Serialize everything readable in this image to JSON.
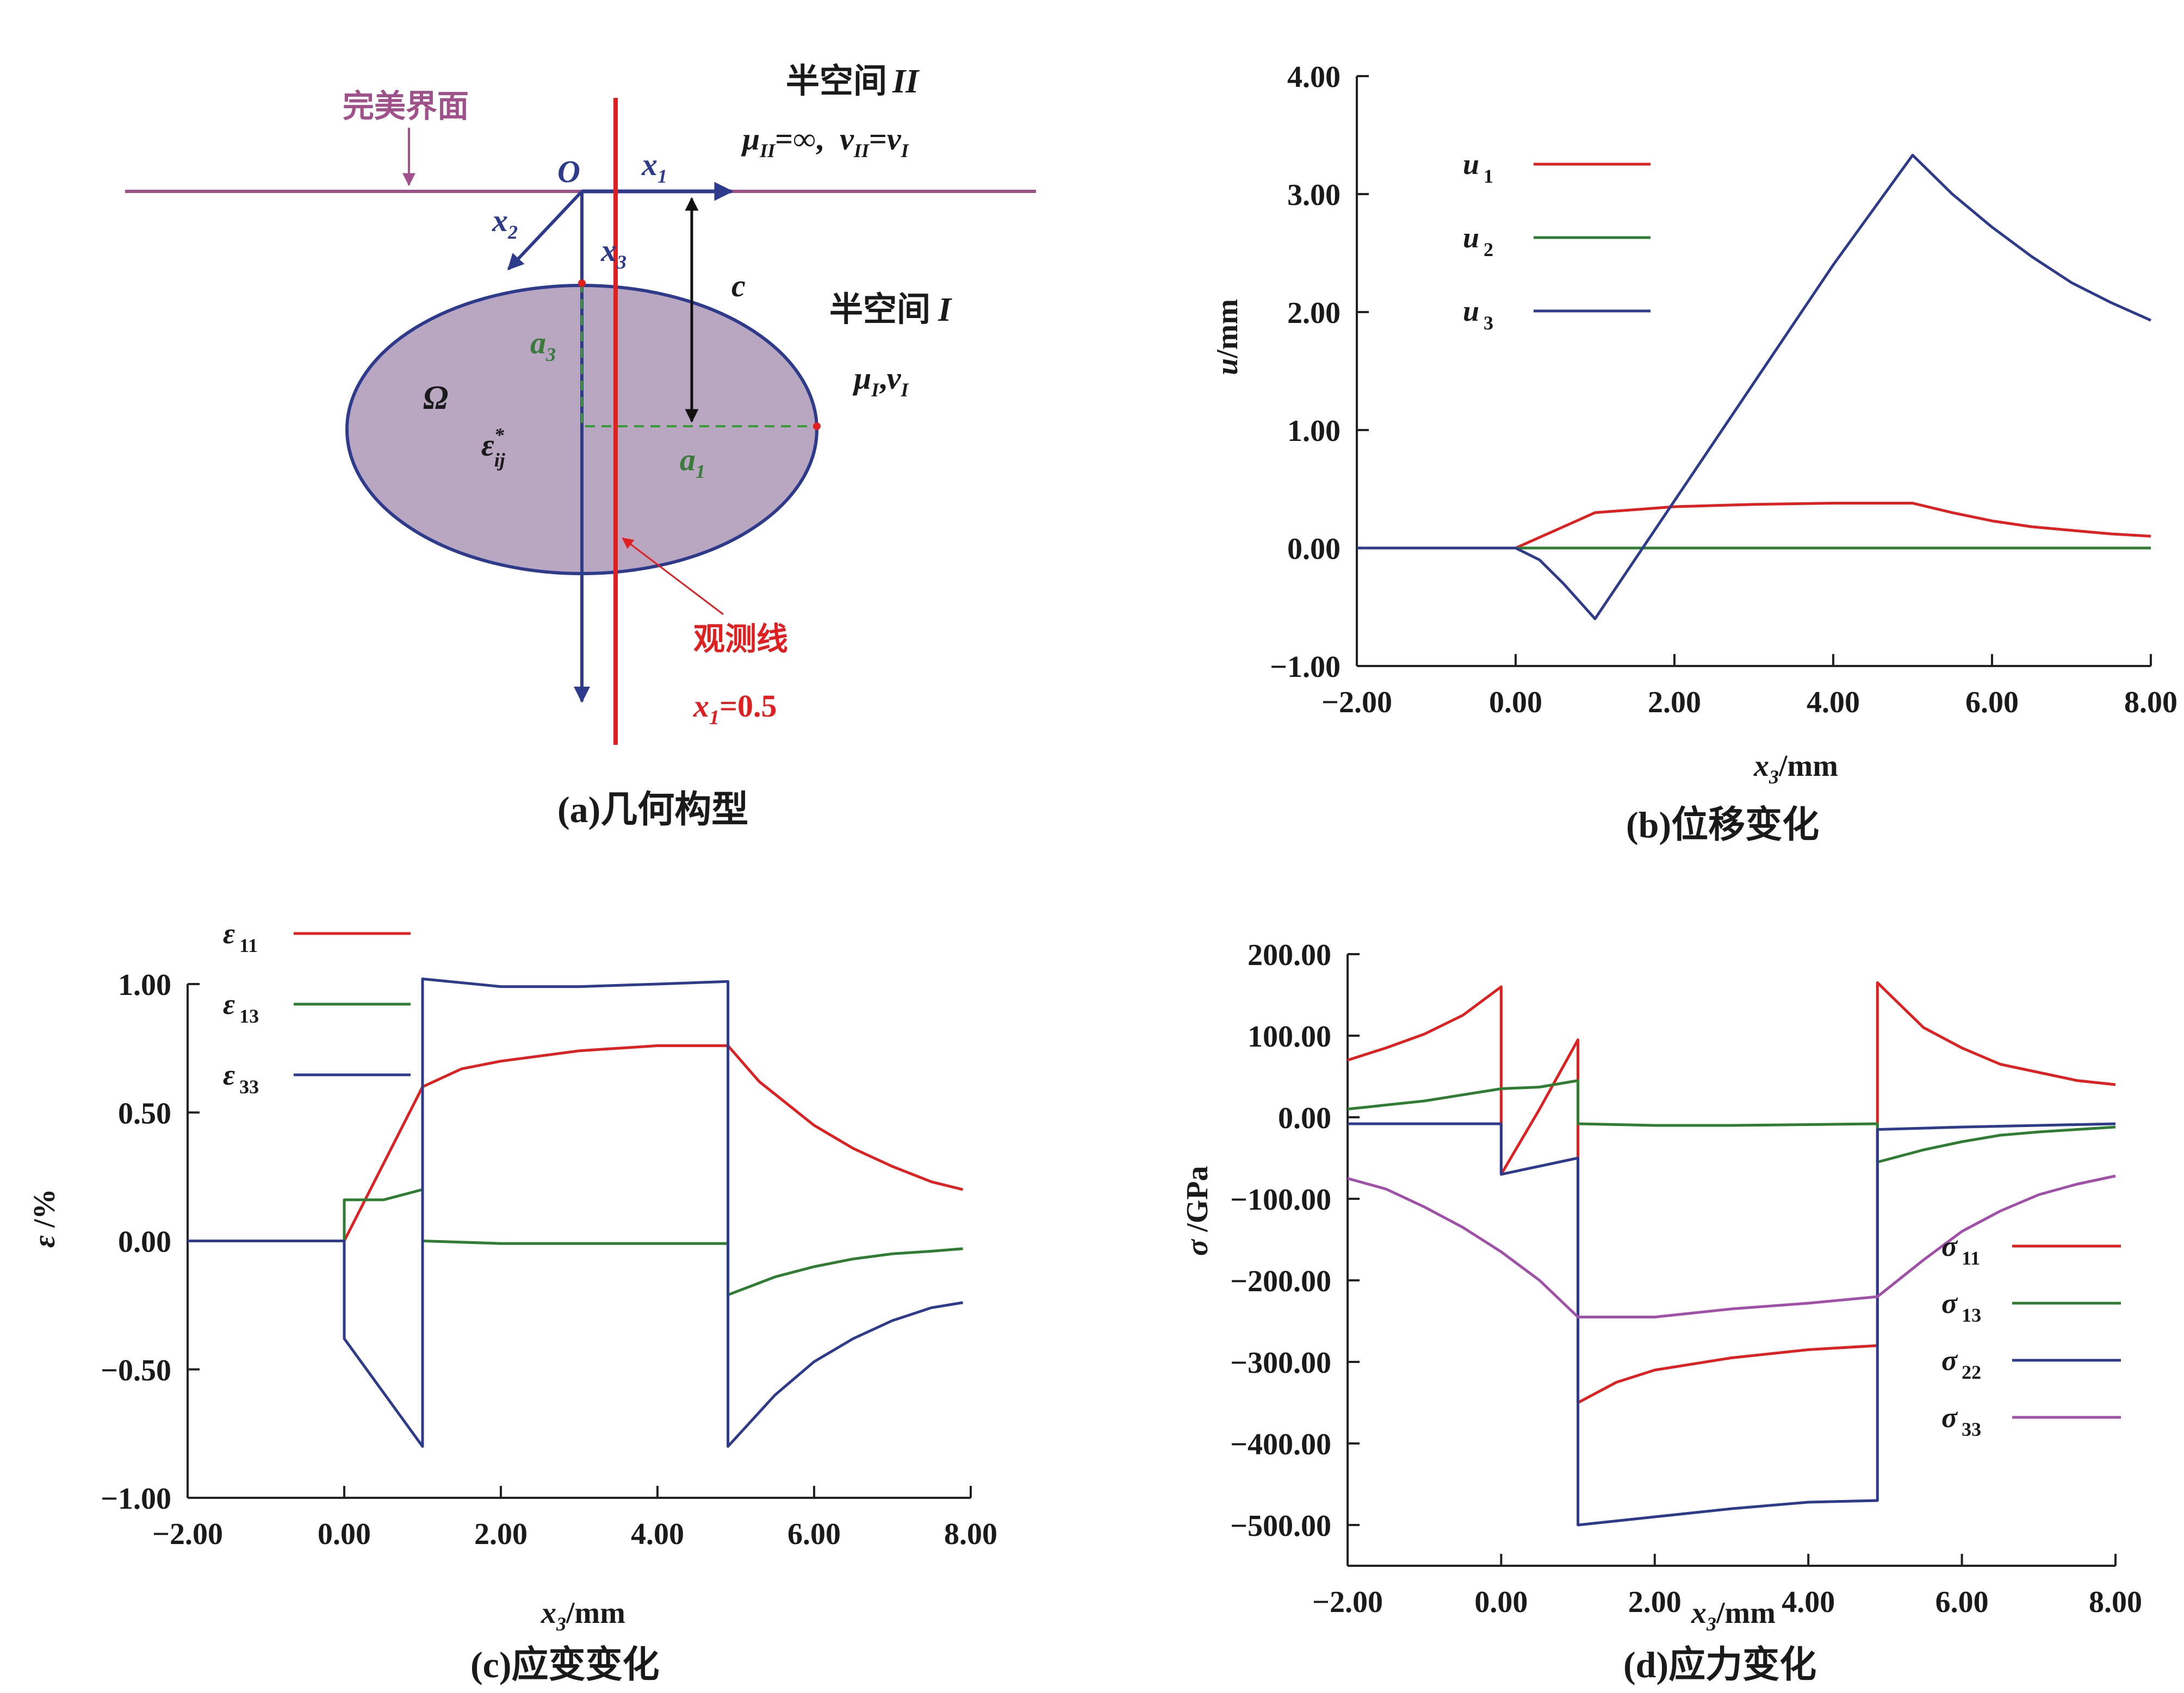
{
  "chart_data": [
    {
      "panel": "a",
      "type": "diagram",
      "caption": "(a)几何构型",
      "labels": {
        "perfect_interface": "完美界面",
        "half_space_2_title": "半空间",
        "half_space_2_numeral": "II",
        "half_space_2_props": "μII=∞, vII=vI",
        "half_space_1_title": "半空间",
        "half_space_1_numeral": "I",
        "half_space_1_props": "μI,vI",
        "origin": "O",
        "x1": "x1",
        "x2": "x2",
        "x3": "x3",
        "c": "c",
        "a1": "a1",
        "a3": "a3",
        "omega": "Ω",
        "eigenstrain": "ε*ij",
        "observation_line": "观测线",
        "observation_position": "x1=0.5"
      },
      "colors": {
        "interface": "#a0508a",
        "ellipse_fill": "#b9a6c1",
        "ellipse_stroke": "#2e3a8c",
        "observation": "#e02020",
        "dims": "#3a7a3a",
        "axis": "#2e3a8c"
      }
    },
    {
      "panel": "b",
      "type": "line",
      "caption": "(b)位移变化",
      "xlabel": "x3/mm",
      "ylabel": "u/mm",
      "xlim": [
        -2,
        8
      ],
      "ylim": [
        -1,
        4
      ],
      "xticks": [
        "−2.00",
        "0.00",
        "2.00",
        "4.00",
        "6.00",
        "8.00"
      ],
      "yticks": [
        "−1.00",
        "0.00",
        "1.00",
        "2.00",
        "3.00",
        "4.00"
      ],
      "legend_position": "top-left",
      "series": [
        {
          "name": "u1",
          "color": "#e02020",
          "points": [
            [
              -2,
              0
            ],
            [
              0,
              0
            ],
            [
              0.5,
              0.15
            ],
            [
              1,
              0.3
            ],
            [
              2,
              0.35
            ],
            [
              3,
              0.37
            ],
            [
              4,
              0.38
            ],
            [
              5,
              0.38
            ],
            [
              5.5,
              0.3
            ],
            [
              6,
              0.23
            ],
            [
              6.5,
              0.18
            ],
            [
              7,
              0.15
            ],
            [
              7.5,
              0.12
            ],
            [
              8,
              0.1
            ]
          ]
        },
        {
          "name": "u2",
          "color": "#2e7d32",
          "points": [
            [
              -2,
              0
            ],
            [
              8,
              0
            ]
          ]
        },
        {
          "name": "u3",
          "color": "#2e3a8c",
          "points": [
            [
              -2,
              0
            ],
            [
              0,
              0
            ],
            [
              0.3,
              -0.1
            ],
            [
              0.6,
              -0.3
            ],
            [
              1,
              -0.6
            ],
            [
              2,
              0.4
            ],
            [
              3,
              1.4
            ],
            [
              4,
              2.4
            ],
            [
              5,
              3.33
            ],
            [
              5.5,
              3.0
            ],
            [
              6,
              2.72
            ],
            [
              6.5,
              2.47
            ],
            [
              7,
              2.25
            ],
            [
              7.5,
              2.08
            ],
            [
              8,
              1.93
            ]
          ]
        }
      ]
    },
    {
      "panel": "c",
      "type": "line",
      "caption": "(c)应变变化",
      "xlabel": "x3/mm",
      "ylabel": "ε/%",
      "xlim": [
        -2,
        8
      ],
      "ylim": [
        -1,
        1
      ],
      "xticks": [
        "−2.00",
        "0.00",
        "2.00",
        "4.00",
        "6.00",
        "8.00"
      ],
      "yticks": [
        "−1.00",
        "−0.50",
        "0.00",
        "0.50",
        "1.00"
      ],
      "legend_position": "top-left",
      "series": [
        {
          "name": "ε11",
          "color": "#e02020",
          "points": [
            [
              -2,
              0
            ],
            [
              0,
              0
            ],
            [
              1,
              0.6
            ],
            [
              1.5,
              0.67
            ],
            [
              2,
              0.7
            ],
            [
              3,
              0.74
            ],
            [
              4,
              0.76
            ],
            [
              4.9,
              0.76
            ],
            [
              5.3,
              0.62
            ],
            [
              6,
              0.45
            ],
            [
              6.5,
              0.36
            ],
            [
              7,
              0.29
            ],
            [
              7.5,
              0.23
            ],
            [
              7.9,
              0.2
            ]
          ]
        },
        {
          "name": "ε13",
          "color": "#2e7d32",
          "points": [
            [
              -2,
              0
            ],
            [
              0,
              0
            ],
            [
              0,
              0.16
            ],
            [
              0.5,
              0.16
            ],
            [
              1,
              0.2
            ],
            [
              1,
              0
            ],
            [
              2,
              -0.01
            ],
            [
              3,
              -0.01
            ],
            [
              4,
              -0.01
            ],
            [
              4.9,
              -0.01
            ],
            [
              4.9,
              -0.21
            ],
            [
              5.5,
              -0.14
            ],
            [
              6,
              -0.1
            ],
            [
              6.5,
              -0.07
            ],
            [
              7,
              -0.05
            ],
            [
              7.5,
              -0.04
            ],
            [
              7.9,
              -0.03
            ]
          ]
        },
        {
          "name": "ε33",
          "color": "#2e3a8c",
          "points": [
            [
              -2,
              0
            ],
            [
              0,
              0
            ],
            [
              0,
              -0.38
            ],
            [
              1,
              -0.8
            ],
            [
              1,
              1.02
            ],
            [
              2,
              0.99
            ],
            [
              3,
              0.99
            ],
            [
              4,
              1.0
            ],
            [
              4.9,
              1.01
            ],
            [
              4.9,
              -0.8
            ],
            [
              5.5,
              -0.6
            ],
            [
              6,
              -0.47
            ],
            [
              6.5,
              -0.38
            ],
            [
              7,
              -0.31
            ],
            [
              7.5,
              -0.26
            ],
            [
              7.9,
              -0.24
            ]
          ]
        }
      ]
    },
    {
      "panel": "d",
      "type": "line",
      "caption": "(d)应力变化",
      "xlabel": "x3/mm",
      "ylabel": "σ/GPa",
      "xlim": [
        -2,
        8
      ],
      "ylim": [
        -550,
        200
      ],
      "xticks": [
        "−2.00",
        "0.00",
        "2.00",
        "4.00",
        "6.00",
        "8.00"
      ],
      "yticks": [
        "−500.00",
        "−400.00",
        "−300.00",
        "−200.00",
        "−100.00",
        "0.00",
        "100.00",
        "200.00"
      ],
      "legend_position": "bottom-right",
      "series": [
        {
          "name": "σ11",
          "color": "#e02020",
          "points": [
            [
              -2,
              70
            ],
            [
              -1.5,
              85
            ],
            [
              -1,
              102
            ],
            [
              -0.5,
              125
            ],
            [
              0,
              160
            ],
            [
              0,
              -70
            ],
            [
              0.5,
              10
            ],
            [
              1,
              95
            ],
            [
              1,
              -350
            ],
            [
              1.5,
              -325
            ],
            [
              2,
              -310
            ],
            [
              3,
              -295
            ],
            [
              4,
              -285
            ],
            [
              4.9,
              -280
            ],
            [
              4.9,
              165
            ],
            [
              5.5,
              110
            ],
            [
              6,
              85
            ],
            [
              6.5,
              65
            ],
            [
              7,
              55
            ],
            [
              7.5,
              45
            ],
            [
              8,
              40
            ]
          ]
        },
        {
          "name": "σ13",
          "color": "#2e7d32",
          "points": [
            [
              -2,
              10
            ],
            [
              -1,
              20
            ],
            [
              0,
              35
            ],
            [
              0.5,
              37
            ],
            [
              1,
              45
            ],
            [
              1,
              -8
            ],
            [
              2,
              -10
            ],
            [
              3,
              -10
            ],
            [
              4,
              -9
            ],
            [
              4.9,
              -8
            ],
            [
              4.9,
              -55
            ],
            [
              5.5,
              -40
            ],
            [
              6,
              -30
            ],
            [
              6.5,
              -22
            ],
            [
              7,
              -18
            ],
            [
              7.5,
              -15
            ],
            [
              8,
              -12
            ]
          ]
        },
        {
          "name": "σ22",
          "color": "#2e3a8c",
          "points": [
            [
              -2,
              -8
            ],
            [
              0,
              -8
            ],
            [
              0,
              -70
            ],
            [
              0.5,
              -60
            ],
            [
              1,
              -50
            ],
            [
              1,
              -500
            ],
            [
              2,
              -490
            ],
            [
              3,
              -480
            ],
            [
              4,
              -472
            ],
            [
              4.9,
              -470
            ],
            [
              4.9,
              -15
            ],
            [
              6,
              -12
            ],
            [
              7,
              -10
            ],
            [
              8,
              -8
            ]
          ]
        },
        {
          "name": "σ33",
          "color": "#a050a8",
          "points": [
            [
              -2,
              -75
            ],
            [
              -1.5,
              -88
            ],
            [
              -1,
              -110
            ],
            [
              -0.5,
              -135
            ],
            [
              0,
              -165
            ],
            [
              0.5,
              -200
            ],
            [
              1,
              -245
            ],
            [
              2,
              -245
            ],
            [
              3,
              -235
            ],
            [
              4,
              -228
            ],
            [
              4.9,
              -220
            ],
            [
              5.5,
              -175
            ],
            [
              6,
              -140
            ],
            [
              6.5,
              -115
            ],
            [
              7,
              -95
            ],
            [
              7.5,
              -82
            ],
            [
              8,
              -72
            ]
          ]
        }
      ]
    }
  ]
}
